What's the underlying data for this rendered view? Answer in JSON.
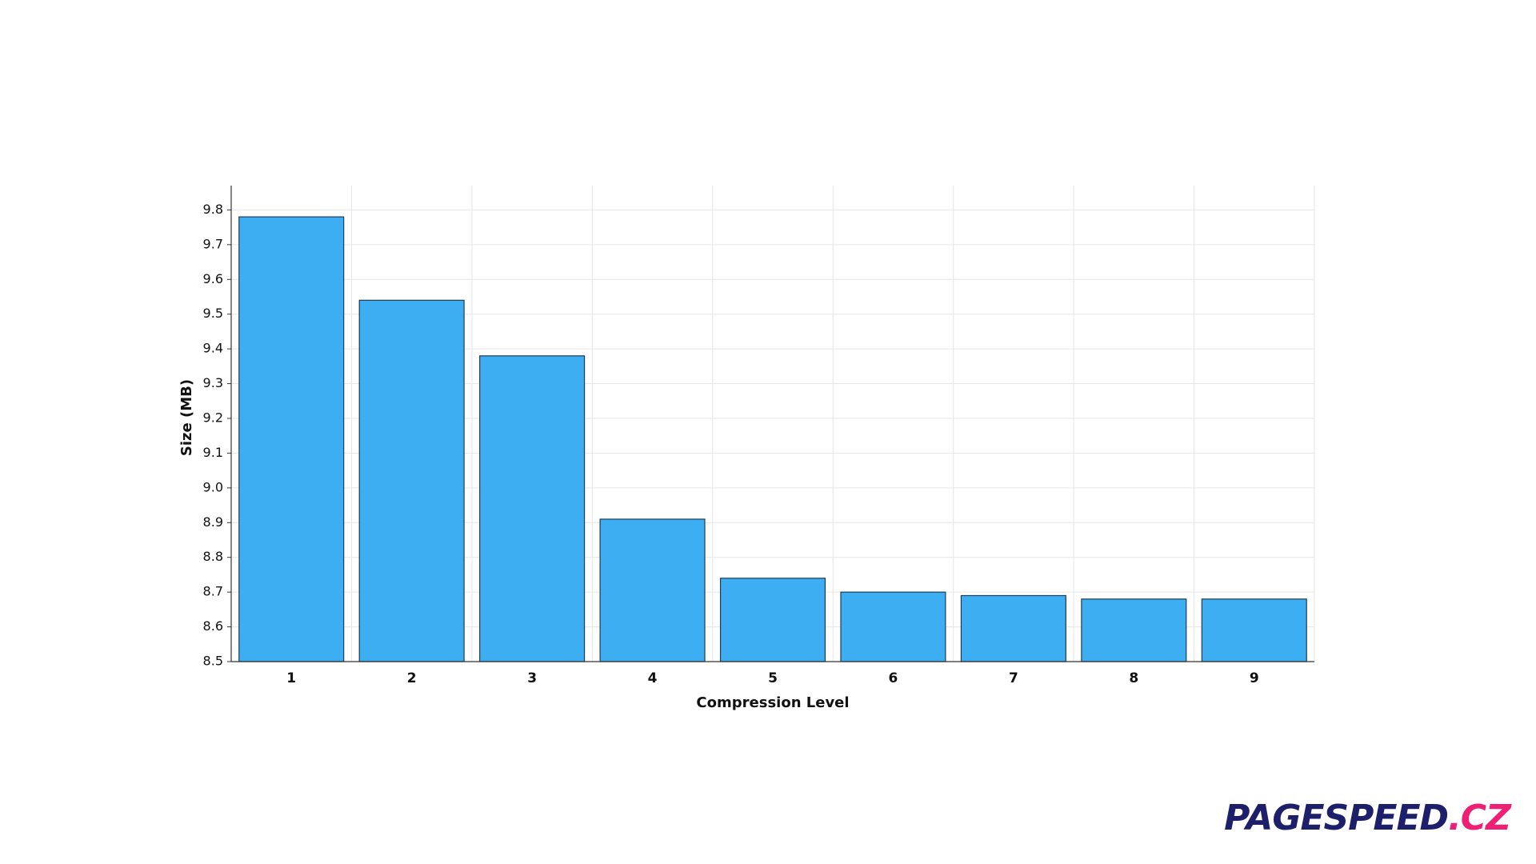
{
  "chart_data": {
    "type": "bar",
    "x_label": "Compression Level",
    "y_label": "Size (MB)",
    "categories": [
      "1",
      "2",
      "3",
      "4",
      "5",
      "6",
      "7",
      "8",
      "9"
    ],
    "values": [
      9.78,
      9.54,
      9.38,
      8.91,
      8.74,
      8.7,
      8.69,
      8.68,
      8.68
    ],
    "color": "#3daef2",
    "ylim": [
      8.5,
      9.87
    ],
    "yticks": [
      8.5,
      8.6,
      8.7,
      8.8,
      8.9,
      {
        "value": 9.0,
        "label": "9.0"
      },
      9.1,
      9.2,
      9.3,
      9.4,
      9.5,
      9.6,
      9.7,
      9.8
    ],
    "grid": true
  },
  "logo": {
    "name": "PAGESPEED",
    "suffix": ".CZ"
  }
}
